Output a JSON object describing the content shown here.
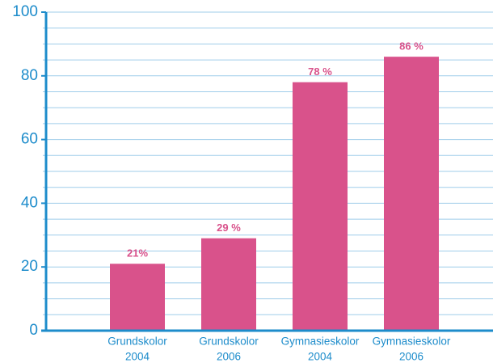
{
  "chart_data": {
    "type": "bar",
    "categories": [
      [
        "Grundskolor",
        "2004"
      ],
      [
        "Grundskolor",
        "2006"
      ],
      [
        "Gymnasieskolor",
        "2004"
      ],
      [
        "Gymnasieskolor",
        "2006"
      ]
    ],
    "values": [
      21,
      29,
      78,
      86
    ],
    "value_labels": [
      "21%",
      "29 %",
      "78 %",
      "86 %"
    ],
    "color": "#d9528b",
    "ylim": [
      0,
      100
    ],
    "yticks": [
      0,
      20,
      40,
      60,
      80,
      100
    ],
    "grid_lines": [
      5,
      10,
      15,
      20,
      25,
      30,
      35,
      40,
      45,
      50,
      55,
      60,
      65,
      70,
      75,
      80,
      85,
      90,
      95,
      100
    ],
    "grid": true
  }
}
